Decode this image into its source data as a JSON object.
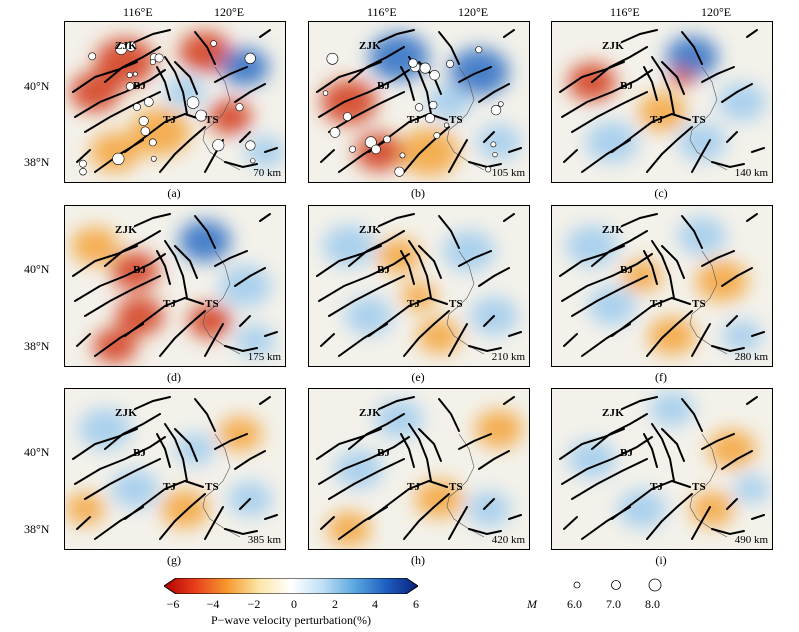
{
  "longitude_ticks": [
    "116°E",
    "120°E"
  ],
  "latitude_ticks": [
    "40°N",
    "38°N"
  ],
  "cities": {
    "zjk": "ZJK",
    "bj": "BJ",
    "tj": "TJ",
    "ts": "TS"
  },
  "panels": [
    {
      "label": "(a)",
      "depth": "70 km"
    },
    {
      "label": "(b)",
      "depth": "105 km"
    },
    {
      "label": "(c)",
      "depth": "140 km"
    },
    {
      "label": "(d)",
      "depth": "175 km"
    },
    {
      "label": "(e)",
      "depth": "210 km"
    },
    {
      "label": "(f)",
      "depth": "280 km"
    },
    {
      "label": "(g)",
      "depth": "385 km"
    },
    {
      "label": "(h)",
      "depth": "420 km"
    },
    {
      "label": "(i)",
      "depth": "490 km"
    }
  ],
  "colorbar": {
    "title": "P−wave velocity perturbation(%)",
    "ticks": [
      "−6",
      "−4",
      "−2",
      "0",
      "2",
      "4",
      "6"
    ],
    "range": [
      -6,
      6
    ],
    "colors": [
      "#b30000",
      "#e8401c",
      "#f79a2e",
      "#fbe6a8",
      "#ffffff",
      "#bfe0f5",
      "#5aa7e0",
      "#1d5fbf",
      "#0a1e7a"
    ]
  },
  "magnitude_legend": {
    "title": "M",
    "levels": [
      {
        "label": "6.0",
        "value": 6.0
      },
      {
        "label": "7.0",
        "value": 7.0
      },
      {
        "label": "8.0",
        "value": 8.0
      }
    ]
  },
  "colors": {
    "fault": "#000000",
    "coast": "#555555",
    "red": "#d2381a",
    "blue": "#2b6cc4",
    "orange": "#f5a33a",
    "lightblue": "#9ecbef"
  }
}
